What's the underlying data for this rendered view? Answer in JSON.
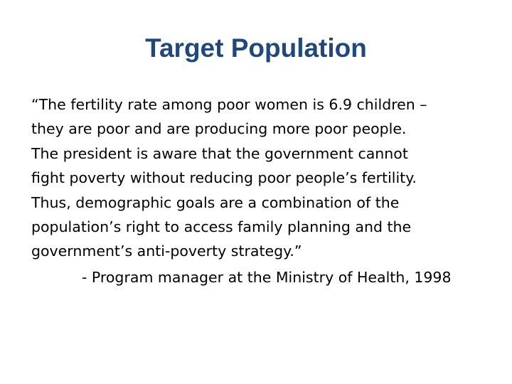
{
  "slide": {
    "title": "Target Population",
    "quote_lines": [
      "“The fertility rate among poor women is 6.9 children –",
      "they are poor and are producing more poor people.",
      "The president is aware that the government cannot",
      "fight poverty without reducing poor people’s fertility.",
      "Thus, demographic goals are a combination of the",
      "population’s right to access family planning and the",
      "government’s anti-poverty strategy.”"
    ],
    "attribution": "- Program manager at the Ministry of Health, 1998"
  },
  "colors": {
    "title": "#1f497d",
    "text": "#000000",
    "background": "#ffffff"
  }
}
